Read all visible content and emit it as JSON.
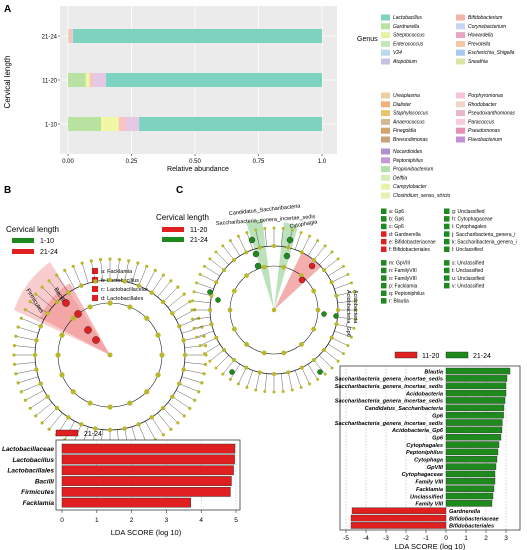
{
  "panels": {
    "a": "A",
    "b": "B",
    "c": "C"
  },
  "chart_data": [
    {
      "type": "bar",
      "orientation": "horizontal",
      "stacked": true,
      "categories": [
        "21-24",
        "11-20",
        "1-10"
      ],
      "ylabel": "Cervical length",
      "xlabel": "Relative abundance",
      "xlim": [
        0,
        1
      ],
      "xticks": [
        "0.00",
        "0.25",
        "0.50",
        "0.75",
        "1.0"
      ],
      "grid": true,
      "legend_title": "Genus",
      "legend_position": "right",
      "series": [
        {
          "name": "Lactobacillus",
          "color": "#7dd3c0",
          "values": [
            0.98,
            0.85,
            0.72
          ]
        },
        {
          "name": "Gardnerella",
          "color": "#b9e1a0",
          "values": [
            0.002,
            0.07,
            0.13
          ]
        },
        {
          "name": "Streptococcus",
          "color": "#f2f7a6",
          "values": [
            0.002,
            0.015,
            0.07
          ]
        },
        {
          "name": "Bifidobacterium",
          "color": "#f7c3c3",
          "values": [
            0.012,
            0.015,
            0.03
          ]
        },
        {
          "name": "Enterococcus",
          "color": "#e3c9e6",
          "values": [
            0.004,
            0.05,
            0.05
          ]
        }
      ],
      "legend_columns": [
        [
          "Lactobacillus",
          "Gardnerella",
          "Streptococcus",
          "Enterococcus",
          "V24",
          "Atopobium"
        ],
        [
          "Bifidobacterium",
          "Corynebacterium",
          "Howardella",
          "Prevotella",
          "Escherichia_Shigella",
          "Sneathia"
        ],
        [
          "Ureaplasma",
          "Dialister",
          "Staphylococcus",
          "Anaerococcus",
          "Finegoldia",
          "Brevundimonas"
        ],
        [
          "Porphyromonas",
          "Rhodobacter",
          "Pseudoxanthomonas",
          "Paracoccus",
          "Pseudomonas",
          "Flavobacterium"
        ],
        [
          "Nocardioides",
          "Peptoniphilus",
          "Propionibacterium",
          "Delftia",
          "Campylobacter",
          "Clostridium_sensu_stricto"
        ]
      ],
      "legend_colors": [
        [
          "#7dd3c0",
          "#b9e1a0",
          "#e7f2a6",
          "#c6e8b8",
          "#b8d9ee",
          "#c9c0e6"
        ],
        [
          "#f2b6a6",
          "#c9d4f0",
          "#e9a6c4",
          "#f2c7a3",
          "#a6c9f2",
          "#d7e6a6"
        ],
        [
          "#e8d0a3",
          "#f0b07c",
          "#e9c46a",
          "#d4b896",
          "#d4a36b",
          "#c7a27a"
        ],
        [
          "#f7c3d6",
          "#f2d5c7",
          "#e6b8cc",
          "#f7ccd9",
          "#e88fb5",
          "#c58fd6"
        ],
        [
          "#b08fcf",
          "#c49ad6",
          "#b3e0a6",
          "#d8eeb8",
          "#e7f3a6",
          "#e9f0b3"
        ]
      ]
    },
    {
      "type": "bar",
      "orientation": "horizontal",
      "title": "Cervical length",
      "legend": [
        {
          "name": "1-10",
          "color": "#1e8a1e"
        },
        {
          "name": "21-24",
          "color": "#e02020"
        }
      ],
      "clade_key": [
        "a: Facklamia",
        "b: Lactobacillus",
        "c: Lactobacillaceae",
        "d: Lactobacillales"
      ],
      "clade_labels": [
        "Firmicutes",
        "Bacilli"
      ],
      "bar_legend": "21-24",
      "categories": [
        "Lactobacillaceae",
        "Lactobacillus",
        "Lactobacillales",
        "Bacilli",
        "Firmicutes",
        "Facklamia"
      ],
      "values": [
        4.97,
        4.96,
        4.93,
        4.87,
        4.84,
        3.7
      ],
      "xlabel": "LDA SCORE (log 10)",
      "xlim": [
        0,
        5
      ],
      "xticks": [
        "0",
        "1",
        "2",
        "3",
        "4",
        "5"
      ]
    },
    {
      "type": "bar",
      "orientation": "horizontal",
      "diverging": true,
      "cladogram_legend": [
        {
          "name": "11-20",
          "color": "#e02020"
        },
        {
          "name": "21-24",
          "color": "#1e8a1e"
        }
      ],
      "cladogram_title": "Cervical length",
      "clade_key_left": [
        "a: Gp6",
        "b: Gp6",
        "c: Gp6",
        "d: Gardnerella",
        "e: Bifidobacteriaceae",
        "f: Bifidobacteriales",
        "m: GpVIII",
        "n: FamilyVIII",
        "o: FamilyVIII",
        "p: Facklamia",
        "q: Peptoniphilus",
        "r: Blautia"
      ],
      "clade_key_right": [
        "g: Unclassified",
        "h: Cytophagaceae",
        "i: Cytophagales",
        "j: Saccharibacteria_genera_i",
        "k: Saccharibacteria_genera_i",
        "l: Unclassified",
        "s: Unclassified",
        "t: Unclassified",
        "u: Unclassified",
        "v: Unclassified"
      ],
      "clade_labels": [
        "Candidatus_Saccharibacteria",
        "Saccharibacteria_genera_incertae_sedis",
        "Cytophagia",
        "Acidobacteria",
        "Acidobacteria_Gp6"
      ],
      "legend": [
        {
          "name": "11-20",
          "color": "#e02020"
        },
        {
          "name": "21-24",
          "color": "#1e8a1e"
        }
      ],
      "categories": [
        "Blautia",
        "Saccharibacteria_genera_incertae_sedis",
        "Saccharibacteria_genera_incertae_sedis",
        "Acidobacteria",
        "Saccharibacteria_genera_incertae_sedis",
        "Candidatus_Saccharibacteria",
        "Gp6",
        "Saccharibacteria_genera_incertae_sedis",
        "Acidobacteria_Gp6",
        "Gp6",
        "Cytophagales",
        "Peptoniphilus",
        "Cytophaga",
        "GpVIII",
        "Cytophagaceae",
        "Family VIII",
        "Facklamia",
        "Unclassified",
        "Family VIII",
        "Gardnerella",
        "Bifidobacteriaceae",
        "Bifidobacteriales"
      ],
      "values": [
        3.2,
        3.05,
        3.0,
        3.0,
        2.95,
        2.9,
        2.88,
        2.82,
        2.8,
        2.75,
        2.65,
        2.6,
        2.55,
        2.5,
        2.45,
        2.45,
        2.4,
        2.35,
        2.3,
        -4.7,
        -4.75,
        -4.75
      ],
      "xlabel": "LDA SCORE (log 10)",
      "xlim": [
        -5,
        3.4
      ],
      "xticks": [
        "-5",
        "-4",
        "-3",
        "-2",
        "-1",
        "0",
        "1",
        "2",
        "3"
      ]
    }
  ]
}
